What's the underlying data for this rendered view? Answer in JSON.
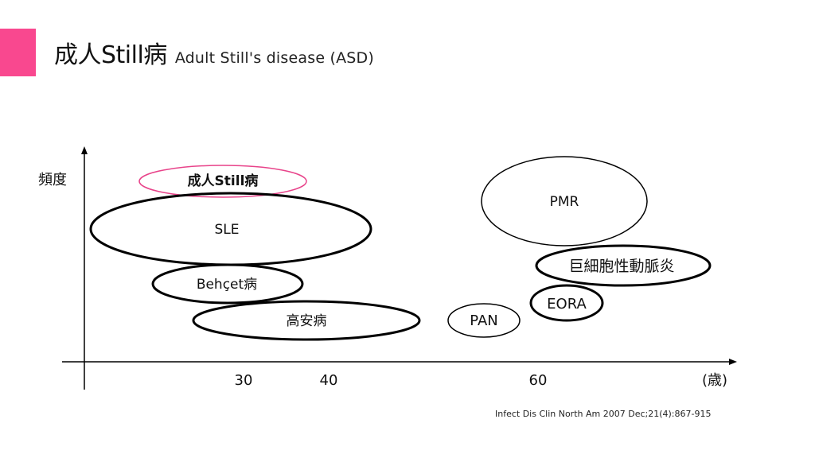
{
  "title": {
    "main": "成人Still病",
    "sub": "Adult Still's disease (ASD)"
  },
  "axes": {
    "y_label": "頻度",
    "x_unit": "(歳)",
    "x_ticks": [
      "30",
      "40",
      "60"
    ]
  },
  "diseases": [
    {
      "id": "asd",
      "label": "成人Still病",
      "highlight": true
    },
    {
      "id": "sle",
      "label": "SLE"
    },
    {
      "id": "behcet",
      "label": "Behçet病"
    },
    {
      "id": "takayasu",
      "label": "高安病"
    },
    {
      "id": "pmr",
      "label": "PMR"
    },
    {
      "id": "gca",
      "label": "巨細胞性動脈炎"
    },
    {
      "id": "eora",
      "label": "EORA"
    },
    {
      "id": "pan",
      "label": "PAN"
    }
  ],
  "colors": {
    "accent": "#f9488f",
    "highlight_outline": "#e8438a",
    "outline": "#000000"
  },
  "citation": "Infect Dis Clin North Am 2007 Dec;21(4):867-915"
}
